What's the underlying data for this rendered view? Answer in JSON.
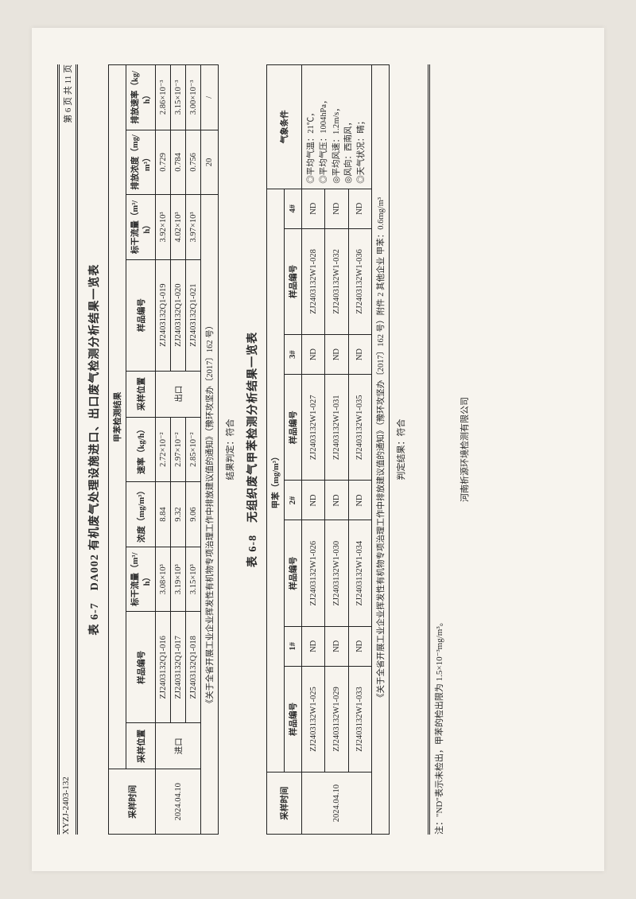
{
  "page": {
    "doc_no": "XYZJ-2403-132",
    "page_label": "第 6 页 共 11 页",
    "footer": "河南析源环境检测有限公司",
    "note": "注：\"ND\"表示未检出，甲苯的检出限为 1.5×10⁻³mg/m³。"
  },
  "table67": {
    "title": "表 6-7　DA002 有机废气处理设施进口、出口废气检测分析结果一览表",
    "header_group": "甲苯检测结果",
    "cols": {
      "time": "采样时间",
      "loc": "采样位置",
      "sample_no": "样品编号",
      "flow": "标干流量（m³/h）",
      "conc": "浓度（mg/m³）",
      "rate": "速率（kg/h）",
      "out_conc": "排放浓度（mg/m³）",
      "out_rate": "排放速率（kg/h）"
    },
    "time": "2024.04.10",
    "loc_in": "进口",
    "loc_out": "出口",
    "rows_in": [
      {
        "id": "ZJ2403132Q1-016",
        "flow": "3.08×10³",
        "conc": "8.84",
        "rate": "2.72×10⁻²"
      },
      {
        "id": "ZJ2403132Q1-017",
        "flow": "3.19×10³",
        "conc": "9.32",
        "rate": "2.97×10⁻²"
      },
      {
        "id": "ZJ2403132Q1-018",
        "flow": "3.15×10³",
        "conc": "9.06",
        "rate": "2.85×10⁻²"
      }
    ],
    "rows_out": [
      {
        "id": "ZJ2403132Q1-019",
        "flow": "3.92×10³",
        "conc": "0.729",
        "rate": "2.86×10⁻³"
      },
      {
        "id": "ZJ2403132Q1-020",
        "flow": "4.02×10³",
        "conc": "0.784",
        "rate": "3.15×10⁻³"
      },
      {
        "id": "ZJ2403132Q1-021",
        "flow": "3.97×10³",
        "conc": "0.756",
        "rate": "3.00×10⁻³"
      }
    ],
    "standard_row": "《关于全省开展工业企业挥发性有机物专项治理工作中排放建议值的通知》（豫环攻坚办〔2017〕162 号）",
    "standard_conc": "20",
    "standard_rate": "/",
    "verdict": "结果判定：符合"
  },
  "table68": {
    "title": "表 6-8　无组织废气甲苯检测分析结果一览表",
    "header_group": "甲苯（mg/m³）",
    "cols": {
      "time": "采样时间",
      "sample_no": "样品编号",
      "p1": "1#",
      "p2": "2#",
      "p3": "3#",
      "p4": "4#",
      "weather": "气象条件"
    },
    "time": "2024.04.10",
    "rows": [
      {
        "ids": [
          "ZJ2403132W1-025",
          "ZJ2403132W1-026",
          "ZJ2403132W1-027",
          "ZJ2403132W1-028"
        ],
        "v": [
          "ND",
          "ND",
          "ND",
          "ND"
        ]
      },
      {
        "ids": [
          "ZJ2403132W1-029",
          "ZJ2403132W1-030",
          "ZJ2403132W1-031",
          "ZJ2403132W1-032"
        ],
        "v": [
          "ND",
          "ND",
          "ND",
          "ND"
        ]
      },
      {
        "ids": [
          "ZJ2403132W1-033",
          "ZJ2403132W1-034",
          "ZJ2403132W1-035",
          "ZJ2403132W1-036"
        ],
        "v": [
          "ND",
          "ND",
          "ND",
          "ND"
        ]
      }
    ],
    "weather": [
      "◎平均气温：21℃，",
      "◎平均气压：1004hPa，",
      "◎平均风速：1.2m/s，",
      "◎风向：西南风，",
      "◎天气状况：晴；"
    ],
    "standard_row": "《关于全省开展工业企业挥发性有机物专项治理工作中排放建议值的通知》（豫环攻坚办〔2017〕162 号）附件 2 其他企业 甲苯：0.6mg/m³",
    "verdict": "判定结果：符合"
  }
}
